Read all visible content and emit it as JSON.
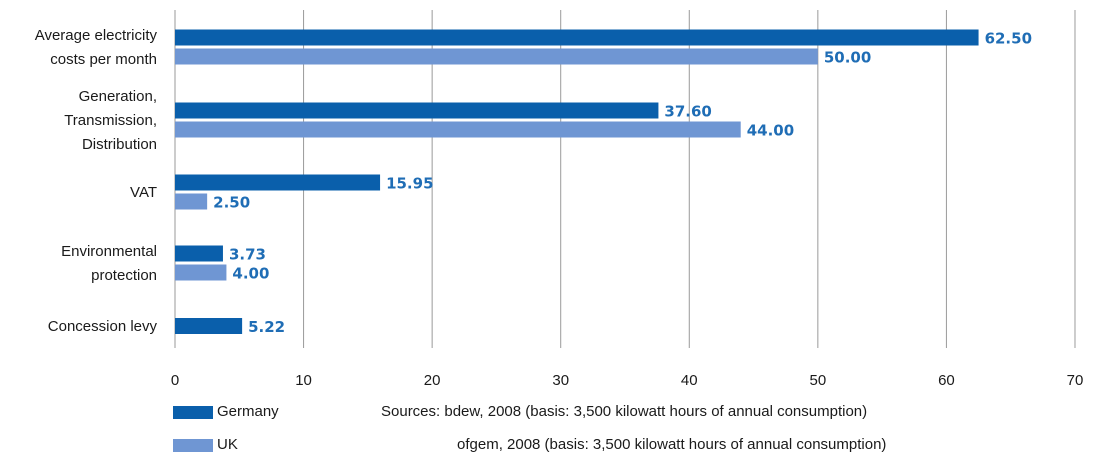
{
  "chart_data": {
    "type": "bar",
    "orientation": "horizontal",
    "categories": [
      [
        "Average electricity",
        "costs per month"
      ],
      [
        "Generation,",
        "Transmission,",
        "Distribution"
      ],
      [
        "VAT"
      ],
      [
        "Environmental",
        "protection"
      ],
      [
        "Concession levy"
      ]
    ],
    "series": [
      {
        "name": "Germany",
        "values": [
          62.5,
          37.6,
          15.95,
          3.73,
          5.22
        ],
        "labels": [
          "62.50",
          "37.60",
          "15.95",
          "3.73",
          "5.22"
        ],
        "color": "#0a5fab"
      },
      {
        "name": "UK",
        "values": [
          50.0,
          44.0,
          2.5,
          4.0,
          null
        ],
        "labels": [
          "50.00",
          "44.00",
          "2.50",
          "4.00",
          ""
        ],
        "color": "#6f96d3"
      }
    ],
    "xlim": [
      0,
      70
    ],
    "xticks": [
      "0",
      "10",
      "20",
      "30",
      "40",
      "50",
      "60",
      "70"
    ],
    "grid": "vertical",
    "value_label_color": "#1f6db5",
    "legend_position": "bottom-left"
  },
  "legend": {
    "items": [
      {
        "name": "Germany",
        "color": "#0a5fab",
        "source": "Sources: bdew, 2008 (basis: 3,500 kilowatt hours of annual consumption)"
      },
      {
        "name": "UK",
        "color": "#6f96d3",
        "source": "ofgem, 2008 (basis: 3,500 kilowatt hours of annual consumption)"
      }
    ]
  }
}
